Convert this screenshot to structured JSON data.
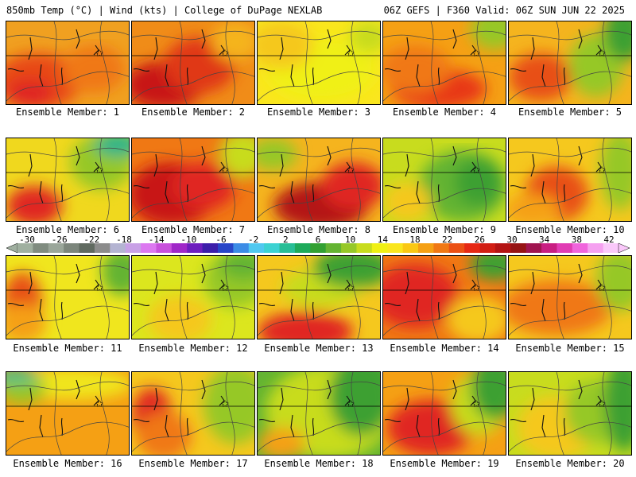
{
  "header": {
    "left": "850mb Temp (°C) | Wind (kts) | College of DuPage NEXLAB",
    "right": "06Z GEFS | F360 Valid: 06Z SUN JUN 22 2025"
  },
  "colorbar": {
    "ticks": [
      "-30",
      "-26",
      "-22",
      "-18",
      "-14",
      "-10",
      "-6",
      "-2",
      "2",
      "6",
      "10",
      "14",
      "18",
      "22",
      "26",
      "30",
      "34",
      "38",
      "42"
    ],
    "colors": [
      "#a0b0a0",
      "#808c80",
      "#9aa69a",
      "#7c867c",
      "#606a60",
      "#8c8c8c",
      "#b4b4d2",
      "#c8a0e6",
      "#dc78f0",
      "#c850dc",
      "#a028c8",
      "#6e1ebe",
      "#3c1eaa",
      "#2846c8",
      "#3c8ce6",
      "#50c8f0",
      "#3cd2d2",
      "#28be96",
      "#1eaa5a",
      "#32a032",
      "#64b432",
      "#96c828",
      "#c8dc1e",
      "#f0f014",
      "#fae61e",
      "#fac814",
      "#f5a014",
      "#f07814",
      "#eb5014",
      "#e62814",
      "#d21e14",
      "#b41414",
      "#961414",
      "#a01450",
      "#c81e82",
      "#e13cb4",
      "#f064dc",
      "#f5a0f0",
      "#fac8fa"
    ]
  },
  "panels": [
    {
      "label": "Ensemble Member: 1",
      "base": "#f0a020",
      "blobs": [
        {
          "c": "#e84818"
        },
        {
          "c": "#e02820"
        },
        {
          "c": "#f07814"
        }
      ]
    },
    {
      "label": "Ensemble Member: 2",
      "base": "#f08c18",
      "blobs": [
        {
          "c": "#c81818"
        },
        {
          "c": "#e03818"
        },
        {
          "c": "#f5b41e"
        }
      ]
    },
    {
      "label": "Ensemble Member: 3",
      "base": "#fae61e",
      "blobs": [
        {
          "c": "#f0f014"
        },
        {
          "c": "#f5c81e"
        },
        {
          "c": "#c8dc1e"
        }
      ]
    },
    {
      "label": "Ensemble Member: 4",
      "base": "#f5a014",
      "blobs": [
        {
          "c": "#e83818"
        },
        {
          "c": "#f07814"
        },
        {
          "c": "#96c828"
        }
      ]
    },
    {
      "label": "Ensemble Member: 5",
      "base": "#f5b41e",
      "blobs": [
        {
          "c": "#e85014"
        },
        {
          "c": "#96c828"
        },
        {
          "c": "#3ca032"
        }
      ]
    },
    {
      "label": "Ensemble Member: 6",
      "base": "#f0d81e",
      "blobs": [
        {
          "c": "#e02820"
        },
        {
          "c": "#96c828"
        },
        {
          "c": "#28b48c"
        }
      ]
    },
    {
      "label": "Ensemble Member: 7",
      "base": "#f07814",
      "blobs": [
        {
          "c": "#c81818"
        },
        {
          "c": "#e02820"
        },
        {
          "c": "#c8dc1e"
        }
      ]
    },
    {
      "label": "Ensemble Member: 8",
      "base": "#f5b41e",
      "blobs": [
        {
          "c": "#b41414"
        },
        {
          "c": "#e02820"
        },
        {
          "c": "#96c828"
        }
      ]
    },
    {
      "label": "Ensemble Member: 9",
      "base": "#c8dc1e",
      "blobs": [
        {
          "c": "#64b432"
        },
        {
          "c": "#3ca032"
        },
        {
          "c": "#f5c81e"
        }
      ]
    },
    {
      "label": "Ensemble Member: 10",
      "base": "#f5c81e",
      "blobs": [
        {
          "c": "#e85014"
        },
        {
          "c": "#f5a014"
        },
        {
          "c": "#96c828"
        }
      ]
    },
    {
      "label": "Ensemble Member: 11",
      "base": "#f0e61e",
      "blobs": [
        {
          "c": "#e85014"
        },
        {
          "c": "#f5a014"
        },
        {
          "c": "#64b432"
        }
      ]
    },
    {
      "label": "Ensemble Member: 12",
      "base": "#dce61e",
      "blobs": [
        {
          "c": "#96c828"
        },
        {
          "c": "#f5c81e"
        },
        {
          "c": "#64b432"
        }
      ]
    },
    {
      "label": "Ensemble Member: 13",
      "base": "#f5c81e",
      "blobs": [
        {
          "c": "#e02820"
        },
        {
          "c": "#c8dc1e"
        },
        {
          "c": "#3ca032"
        }
      ]
    },
    {
      "label": "Ensemble Member: 14",
      "base": "#f07814",
      "blobs": [
        {
          "c": "#e02820"
        },
        {
          "c": "#f5c81e"
        },
        {
          "c": "#3ca032"
        }
      ]
    },
    {
      "label": "Ensemble Member: 15",
      "base": "#f5c81e",
      "blobs": [
        {
          "c": "#e02820"
        },
        {
          "c": "#f07814"
        },
        {
          "c": "#96c828"
        }
      ]
    },
    {
      "label": "Ensemble Member: 16",
      "base": "#f5a014",
      "blobs": [
        {
          "c": "#f0e61e"
        },
        {
          "c": "#96c828"
        },
        {
          "c": "#28be96"
        }
      ]
    },
    {
      "label": "Ensemble Member: 17",
      "base": "#f5c81e",
      "blobs": [
        {
          "c": "#e02820"
        },
        {
          "c": "#f07814"
        },
        {
          "c": "#96c828"
        }
      ]
    },
    {
      "label": "Ensemble Member: 18",
      "base": "#64b432",
      "blobs": [
        {
          "c": "#c8dc1e"
        },
        {
          "c": "#f5a014"
        },
        {
          "c": "#3ca032"
        }
      ]
    },
    {
      "label": "Ensemble Member: 19",
      "base": "#f5a014",
      "blobs": [
        {
          "c": "#e02820"
        },
        {
          "c": "#c8dc1e"
        },
        {
          "c": "#3ca032"
        }
      ]
    },
    {
      "label": "Ensemble Member: 20",
      "base": "#c8dc1e",
      "blobs": [
        {
          "c": "#f5c81e"
        },
        {
          "c": "#96c828"
        },
        {
          "c": "#3ca032"
        }
      ]
    }
  ]
}
